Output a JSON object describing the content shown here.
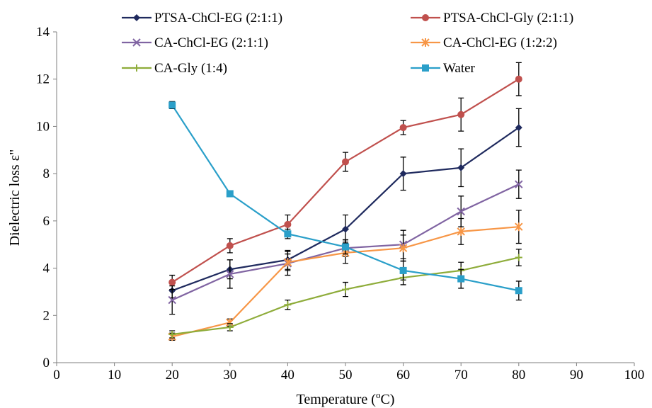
{
  "chart_data": {
    "type": "line",
    "xlabel": "Temperature (",
    "xlabel_sup": "o",
    "xlabel_end": "C)",
    "ylabel": "Dielectric loss ε\"",
    "xlim": [
      0,
      100
    ],
    "ylim": [
      0,
      14
    ],
    "xticks": [
      0,
      10,
      20,
      30,
      40,
      50,
      60,
      70,
      80,
      90,
      100
    ],
    "yticks": [
      0,
      2,
      4,
      6,
      8,
      10,
      12,
      14
    ],
    "grid": false,
    "legend_position": "top",
    "series": [
      {
        "name": "PTSA-ChCl-EG (2:1:1)",
        "color": "#1f2a5e",
        "marker": "diamond",
        "x": [
          20,
          30,
          40,
          50,
          60,
          70,
          80
        ],
        "y": [
          3.05,
          3.95,
          4.35,
          5.65,
          8.0,
          8.25,
          9.95
        ],
        "err": [
          0.3,
          0.4,
          0.4,
          0.6,
          0.7,
          0.8,
          0.8
        ]
      },
      {
        "name": "PTSA-ChCl-Gly (2:1:1)",
        "color": "#c0504d",
        "marker": "circle",
        "x": [
          20,
          30,
          40,
          50,
          60,
          70,
          80
        ],
        "y": [
          3.4,
          4.95,
          5.85,
          8.5,
          9.95,
          10.5,
          12.0
        ],
        "err": [
          0.3,
          0.3,
          0.4,
          0.4,
          0.3,
          0.7,
          0.7
        ]
      },
      {
        "name": " CA-ChCl-EG (2:1:1)",
        "color": "#8064a2",
        "marker": "x",
        "x": [
          20,
          30,
          40,
          50,
          60,
          70,
          80
        ],
        "y": [
          2.65,
          3.75,
          4.2,
          4.85,
          5.0,
          6.4,
          7.55
        ],
        "err": [
          0.6,
          0.6,
          0.5,
          0.35,
          0.6,
          0.65,
          0.6
        ]
      },
      {
        "name": "CA-ChCl-EG (1:2:2)",
        "color": "#f79646",
        "marker": "asterisk",
        "x": [
          20,
          30,
          40,
          50,
          60,
          70,
          80
        ],
        "y": [
          1.1,
          1.7,
          4.25,
          4.65,
          4.85,
          5.55,
          5.75
        ],
        "err": [
          0.15,
          0.15,
          0.35,
          0.45,
          0.55,
          0.55,
          0.7
        ]
      },
      {
        "name": "CA-Gly (1:4)",
        "color": "#8eac3a",
        "marker": "plus",
        "x": [
          20,
          30,
          40,
          50,
          60,
          70,
          80
        ],
        "y": [
          1.2,
          1.5,
          2.45,
          3.1,
          3.6,
          3.9,
          4.45
        ],
        "err": [
          0.15,
          0.15,
          0.2,
          0.3,
          0.3,
          0.35,
          0.35
        ]
      },
      {
        "name": "Water",
        "color": "#2a9fc9",
        "marker": "square",
        "x": [
          20,
          30,
          40,
          50,
          60,
          70,
          80
        ],
        "y": [
          10.9,
          7.15,
          5.45,
          4.9,
          3.9,
          3.55,
          3.05
        ],
        "err": [
          0.15,
          0.1,
          0.2,
          0.3,
          0.4,
          0.4,
          0.4
        ]
      }
    ]
  }
}
